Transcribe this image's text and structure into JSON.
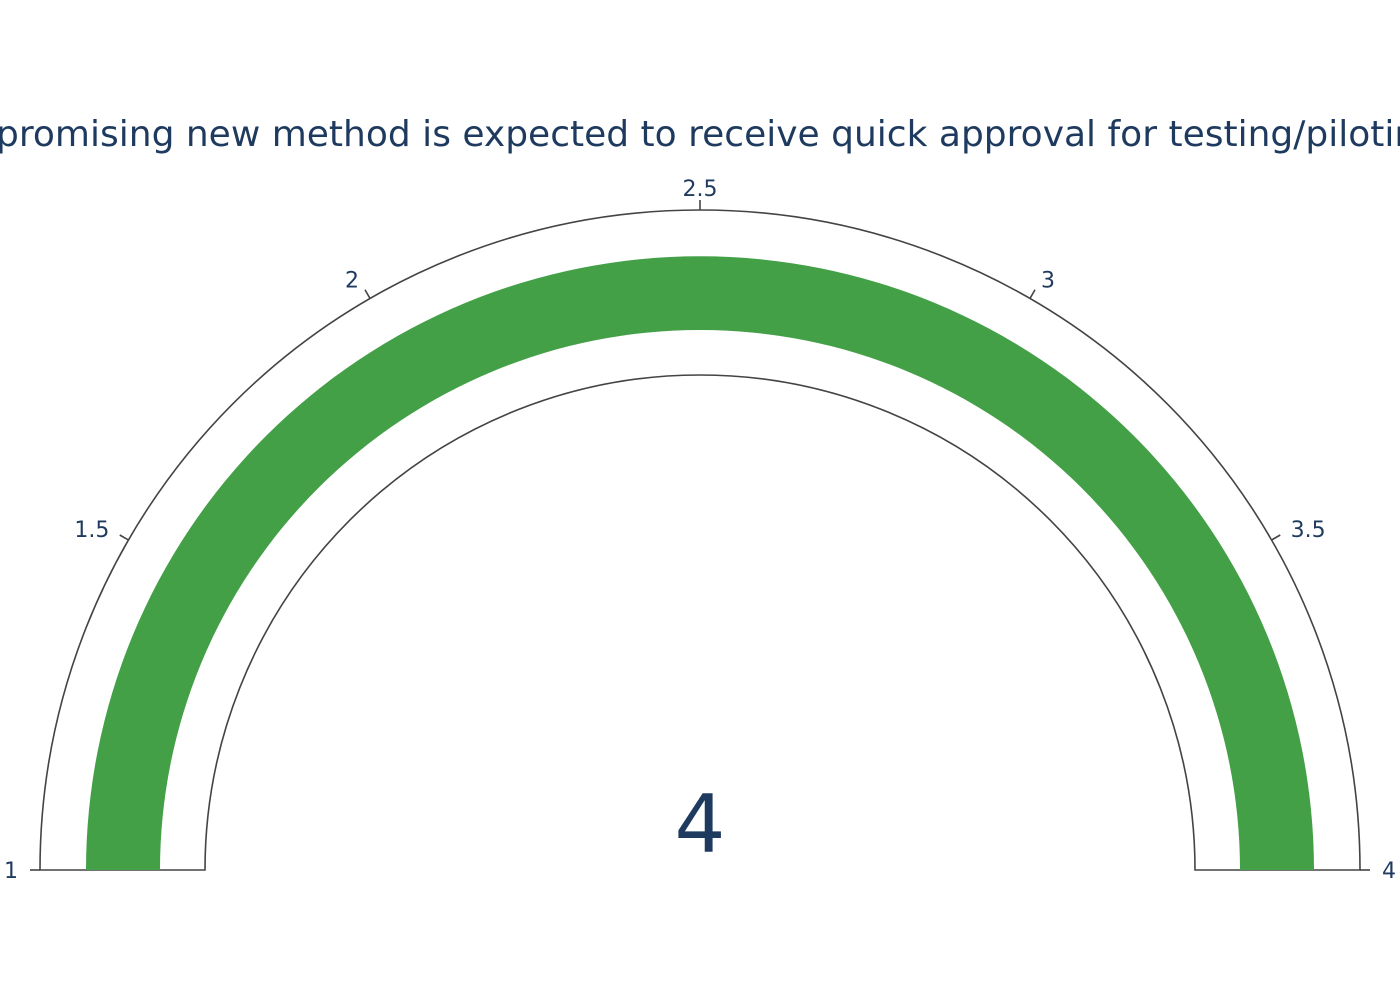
{
  "chart_data": {
    "type": "gauge",
    "title": "A promising new method is expected to receive quick approval for testing/piloting",
    "value": 4,
    "value_label": "4",
    "range": [
      1,
      4
    ],
    "ticks": [
      {
        "value": 1,
        "label": "1"
      },
      {
        "value": 1.5,
        "label": "1.5"
      },
      {
        "value": 2,
        "label": "2"
      },
      {
        "value": 2.5,
        "label": "2.5"
      },
      {
        "value": 3,
        "label": "3"
      },
      {
        "value": 3.5,
        "label": "3.5"
      },
      {
        "value": 4,
        "label": "4"
      }
    ],
    "bar_color": "#43a047",
    "outline_color": "#444444",
    "text_color": "#1f3a5f",
    "background_color": "#ffffff"
  }
}
